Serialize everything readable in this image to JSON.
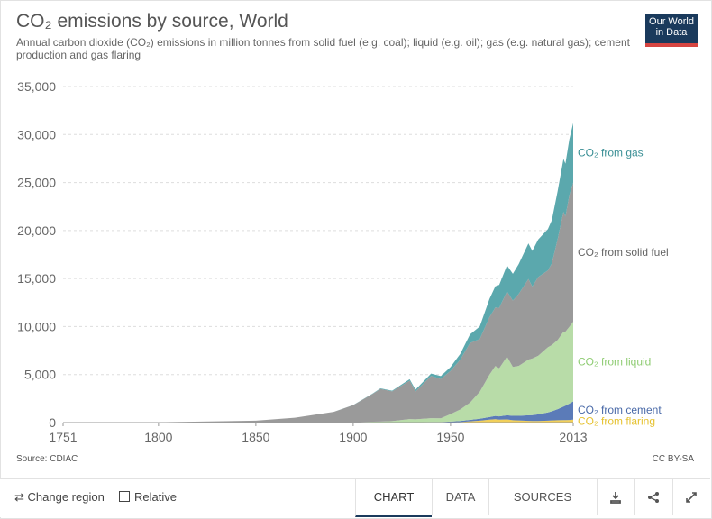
{
  "header": {
    "title": "CO₂ emissions by source, World",
    "subtitle": "Annual carbon dioxide (CO₂) emissions in million tonnes from solid fuel (e.g. coal); liquid (e.g. oil); gas (e.g. natural gas); cement production and gas flaring",
    "logo_line1": "Our World",
    "logo_line2": "in Data"
  },
  "footer": {
    "source": "Source: CDIAC",
    "license": "CC BY-SA"
  },
  "controls": {
    "change_region": "Change region",
    "relative": "Relative",
    "tabs": [
      "CHART",
      "DATA",
      "SOURCES"
    ],
    "active_tab": "CHART"
  },
  "colors": {
    "gas": "#5ba8ad",
    "solid_fuel": "#9a9a9a",
    "liquid": "#b8dca8",
    "cement": "#5b7bb8",
    "flaring": "#f2d05a",
    "grid": "#dddddd",
    "brand": "#1a3a5c",
    "brand_accent": "#d64541"
  },
  "chart_data": {
    "type": "area",
    "stacked": true,
    "x": [
      1751,
      1800,
      1850,
      1870,
      1890,
      1900,
      1910,
      1914,
      1920,
      1929,
      1932,
      1940,
      1945,
      1950,
      1955,
      1960,
      1965,
      1970,
      1973,
      1975,
      1979,
      1982,
      1985,
      1990,
      1992,
      1995,
      2000,
      2002,
      2005,
      2008,
      2009,
      2011,
      2013
    ],
    "x_ticks": [
      "1751",
      "1800",
      "1850",
      "1900",
      "1950",
      "2013"
    ],
    "y_ticks": [
      "0",
      "5,000",
      "10,000",
      "15,000",
      "20,000",
      "25,000",
      "30,000",
      "35,000"
    ],
    "ylim": [
      0,
      35000
    ],
    "grid": "horizontal",
    "series": [
      {
        "name": "CO₂ from flaring",
        "key": "flaring",
        "values": [
          0,
          0,
          0,
          0,
          0,
          0,
          0,
          0,
          0,
          0,
          0,
          0,
          0,
          30,
          60,
          130,
          200,
          300,
          350,
          300,
          330,
          250,
          220,
          180,
          170,
          160,
          200,
          220,
          250,
          260,
          260,
          270,
          300
        ]
      },
      {
        "name": "CO₂ from cement",
        "key": "cement",
        "values": [
          0,
          0,
          0,
          0,
          0,
          0,
          0,
          0,
          0,
          40,
          40,
          60,
          60,
          70,
          100,
          150,
          200,
          280,
          340,
          350,
          430,
          450,
          480,
          580,
          600,
          700,
          850,
          950,
          1150,
          1400,
          1500,
          1700,
          1900
        ]
      },
      {
        "name": "CO₂ from liquid",
        "key": "liquid",
        "values": [
          0,
          0,
          0,
          0,
          10,
          20,
          90,
          110,
          150,
          320,
          300,
          400,
          380,
          780,
          1200,
          1800,
          2800,
          4400,
          5200,
          5000,
          6100,
          5100,
          5200,
          5800,
          5900,
          6100,
          6800,
          6900,
          7200,
          7800,
          7700,
          8000,
          8300
        ]
      },
      {
        "name": "CO₂ from solid fuel",
        "key": "solid_fuel",
        "values": [
          10,
          30,
          200,
          500,
          1100,
          1800,
          2900,
          3400,
          3100,
          4000,
          2900,
          4400,
          4100,
          4500,
          5200,
          6200,
          5500,
          6000,
          6100,
          6300,
          6800,
          6900,
          7500,
          8400,
          7500,
          8200,
          8000,
          8500,
          10500,
          12500,
          12000,
          13700,
          14500
        ]
      },
      {
        "name": "CO₂ from gas",
        "key": "gas",
        "values": [
          0,
          0,
          0,
          0,
          0,
          10,
          40,
          50,
          70,
          150,
          180,
          240,
          300,
          400,
          600,
          900,
          1300,
          1900,
          2200,
          2400,
          2700,
          2800,
          3100,
          3700,
          3700,
          3900,
          4300,
          4500,
          5000,
          5500,
          5500,
          5800,
          6200
        ]
      }
    ],
    "labels": [
      {
        "key": "gas",
        "text": "CO₂ from gas"
      },
      {
        "key": "solid_fuel",
        "text": "CO₂ from solid fuel"
      },
      {
        "key": "liquid",
        "text": "CO₂ from liquid"
      },
      {
        "key": "cement",
        "text": "CO₂ from cement"
      },
      {
        "key": "flaring",
        "text": "CO₂ from flaring"
      }
    ]
  }
}
